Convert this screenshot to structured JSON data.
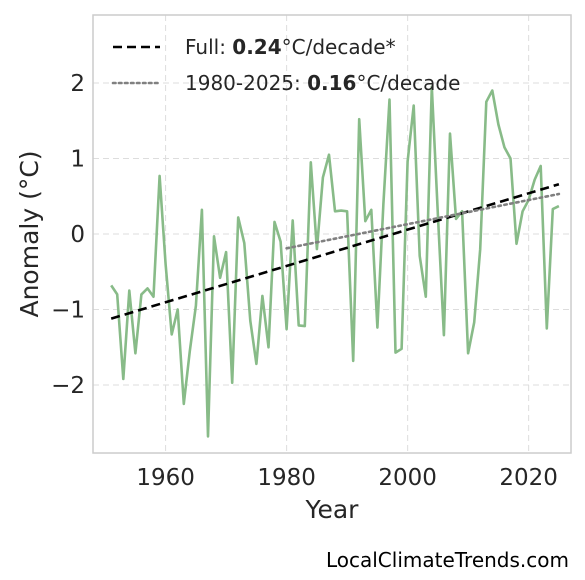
{
  "chart_data": {
    "type": "line",
    "xlabel": "Year",
    "ylabel": "Anomaly (°C)",
    "xlim": [
      1948,
      2027
    ],
    "ylim": [
      -2.9,
      2.9
    ],
    "xticks": [
      1960,
      1980,
      2000,
      2020
    ],
    "yticks": [
      2,
      1,
      0,
      -1,
      -2
    ],
    "ytick_labels": [
      "2",
      "1",
      "0",
      "−1",
      "−2"
    ],
    "grid": true,
    "legend_position": "top-left",
    "series": [
      {
        "style": "solid",
        "color": "#88bb88",
        "x": [
          1951,
          1952,
          1953,
          1954,
          1955,
          1956,
          1957,
          1958,
          1959,
          1960,
          1961,
          1962,
          1963,
          1964,
          1965,
          1966,
          1967,
          1968,
          1969,
          1970,
          1971,
          1972,
          1973,
          1974,
          1975,
          1976,
          1977,
          1978,
          1979,
          1980,
          1981,
          1982,
          1983,
          1984,
          1985,
          1986,
          1987,
          1988,
          1989,
          1990,
          1991,
          1992,
          1993,
          1994,
          1995,
          1996,
          1997,
          1998,
          1999,
          2000,
          2001,
          2002,
          2003,
          2004,
          2005,
          2006,
          2007,
          2008,
          2009,
          2010,
          2011,
          2012,
          2013,
          2014,
          2015,
          2016,
          2017,
          2018,
          2019,
          2020,
          2021,
          2022,
          2023,
          2024,
          2025
        ],
        "y": [
          -0.68,
          -0.8,
          -1.92,
          -0.75,
          -1.58,
          -0.8,
          -0.72,
          -0.83,
          0.77,
          -0.4,
          -1.33,
          -1.0,
          -2.25,
          -1.55,
          -0.95,
          0.32,
          -2.68,
          -0.03,
          -0.58,
          -0.24,
          -1.97,
          0.22,
          -0.12,
          -1.15,
          -1.72,
          -0.82,
          -1.5,
          0.16,
          -0.1,
          -1.26,
          0.18,
          -1.21,
          -1.22,
          0.95,
          -0.2,
          0.75,
          1.05,
          0.3,
          0.31,
          0.3,
          -1.68,
          1.52,
          0.17,
          0.32,
          -1.24,
          0.4,
          1.78,
          -1.57,
          -1.52,
          0.96,
          1.7,
          -0.29,
          -0.83,
          1.95,
          0.25,
          -1.34,
          1.33,
          0.2,
          0.3,
          -1.58,
          -1.17,
          -0.2,
          1.75,
          1.9,
          1.45,
          1.15,
          1.0,
          -0.13,
          0.3,
          0.45,
          0.72,
          0.9,
          -1.25,
          0.33,
          0.37
        ]
      },
      {
        "style": "dashed",
        "color": "#000000",
        "x": [
          1951,
          2025
        ],
        "y": [
          -1.12,
          0.66
        ]
      },
      {
        "style": "dotted",
        "color": "#808080",
        "x": [
          1980,
          2025
        ],
        "y": [
          -0.19,
          0.53
        ]
      }
    ],
    "legend": [
      {
        "style": "dashed",
        "color": "#000000",
        "prefix": "Full: ",
        "value": "0.24",
        "suffix": "°C/decade*"
      },
      {
        "style": "dotted",
        "color": "#808080",
        "prefix": "1980-2025: ",
        "value": "0.16",
        "suffix": "°C/decade"
      }
    ]
  },
  "credit": "LocalClimateTrends.com"
}
